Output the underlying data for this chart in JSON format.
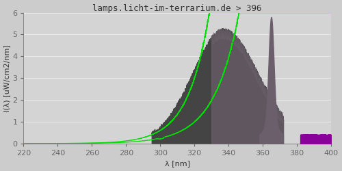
{
  "title": "lamps.licht-im-terrarium.de > 396",
  "xlabel": "λ [nm]",
  "ylabel": "I(λ) [uW/cm2/nm]",
  "xlim": [
    220,
    400
  ],
  "ylim": [
    0,
    6.0
  ],
  "yticks": [
    0.0,
    1.0,
    2.0,
    3.0,
    4.0,
    5.0,
    6.0
  ],
  "xticks": [
    220,
    240,
    260,
    280,
    300,
    320,
    340,
    360,
    380,
    400
  ],
  "bg_outer_color": "#cccccc",
  "bg_inner_color": "#d4d4d4",
  "grid_color": "#e8e8e8",
  "uvb_dark_color": "#444444",
  "uva_blend_color": "#6b5f6b",
  "visible_color": "#880099",
  "green_color": "#00dd00",
  "title_color": "#333333",
  "axis_color": "#666666",
  "font_family": "monospace",
  "title_fontsize": 9,
  "label_fontsize": 8,
  "tick_fontsize": 8
}
